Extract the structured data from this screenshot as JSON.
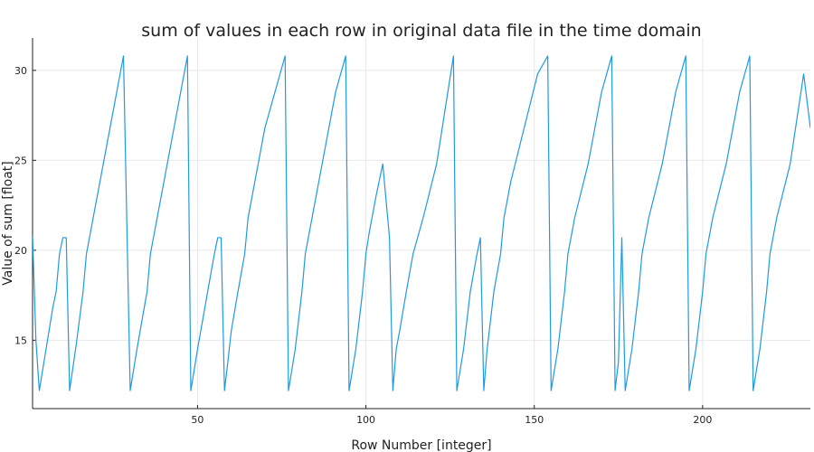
{
  "chart_data": {
    "type": "line",
    "title": "sum of values in each row in original data file in the time domain",
    "xlabel": "Row Number [integer]",
    "ylabel": "Value of sum [float]",
    "xlim": [
      1,
      232
    ],
    "ylim": [
      11.2,
      31.8
    ],
    "xticks": [
      50,
      100,
      150,
      200
    ],
    "yticks": [
      15,
      20,
      25,
      30
    ],
    "grid": true,
    "line_color": "#1E9BE0",
    "series": [
      {
        "x": [
          1,
          2,
          3,
          5,
          7,
          8,
          9,
          10,
          11,
          12,
          14,
          16,
          17,
          19,
          21,
          24,
          27,
          28,
          30,
          32,
          35,
          36,
          38,
          41,
          44,
          47,
          48,
          50,
          53,
          55,
          56,
          57,
          58,
          59,
          60,
          62,
          64,
          65,
          67,
          70,
          73,
          76,
          77,
          79,
          81,
          82,
          84,
          87,
          91,
          94,
          95,
          97,
          99,
          100,
          101,
          103,
          105,
          107,
          108,
          109,
          110,
          112,
          114,
          117,
          121,
          126,
          127,
          129,
          131,
          133,
          134,
          135,
          136,
          138,
          140,
          141,
          143,
          147,
          151,
          154,
          155,
          157,
          159,
          160,
          162,
          166,
          170,
          173,
          174,
          175,
          176,
          177,
          179,
          181,
          182,
          184,
          188,
          192,
          195,
          196,
          198,
          200,
          201,
          203,
          207,
          211,
          214,
          215,
          217,
          219,
          220,
          222,
          226,
          230,
          232
        ],
        "y": [
          20.8,
          15.0,
          12.2,
          14.5,
          16.8,
          17.7,
          19.8,
          20.7,
          20.7,
          12.2,
          14.8,
          17.7,
          19.8,
          21.8,
          23.8,
          26.8,
          29.8,
          30.8,
          12.2,
          14.5,
          17.7,
          19.8,
          21.8,
          24.8,
          27.8,
          30.8,
          12.2,
          14.5,
          17.7,
          19.8,
          20.7,
          20.7,
          12.2,
          13.8,
          15.5,
          17.7,
          19.8,
          21.8,
          23.8,
          26.8,
          28.8,
          30.8,
          12.2,
          14.5,
          17.7,
          19.8,
          21.8,
          24.8,
          28.8,
          30.8,
          12.2,
          14.5,
          17.7,
          19.8,
          21.0,
          23.0,
          24.8,
          20.7,
          12.2,
          14.5,
          15.5,
          17.7,
          19.8,
          21.8,
          24.8,
          30.8,
          12.2,
          14.5,
          17.7,
          19.8,
          20.7,
          12.2,
          14.5,
          17.7,
          19.8,
          21.8,
          23.8,
          26.8,
          29.8,
          30.8,
          12.2,
          14.5,
          17.7,
          19.8,
          21.8,
          24.8,
          28.8,
          30.8,
          12.2,
          13.8,
          20.7,
          12.2,
          14.5,
          17.7,
          19.8,
          21.8,
          24.8,
          28.8,
          30.8,
          12.2,
          14.5,
          17.7,
          19.8,
          21.8,
          24.8,
          28.8,
          30.8,
          12.2,
          14.5,
          17.7,
          19.8,
          21.8,
          24.8,
          29.8,
          26.8
        ]
      }
    ]
  }
}
